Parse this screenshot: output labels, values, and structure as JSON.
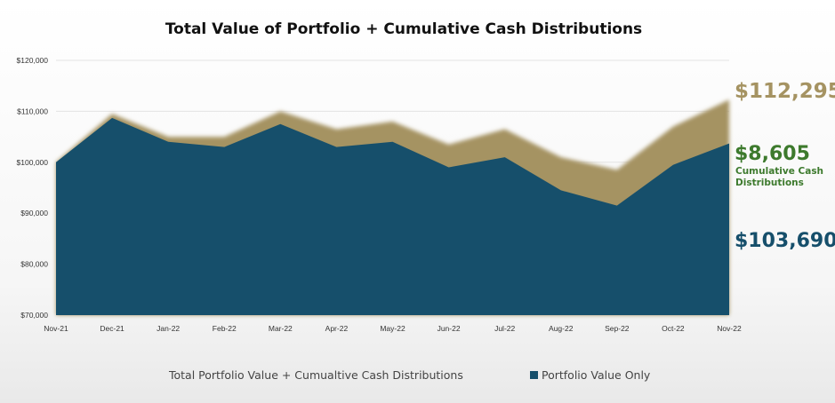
{
  "chart_data": {
    "type": "area",
    "title": "Total Value of Portfolio + Cumulative Cash Distributions",
    "categories": [
      "Nov-21",
      "Dec-21",
      "Jan-22",
      "Feb-22",
      "Mar-22",
      "Apr-22",
      "May-22",
      "Jun-22",
      "Jul-22",
      "Aug-22",
      "Sep-22",
      "Oct-22",
      "Nov-22"
    ],
    "series": [
      {
        "name": "Total Portfolio Value + Cumualtive Cash Distributions",
        "color": "#a59362",
        "values": [
          100000,
          109500,
          105000,
          105000,
          110000,
          106500,
          108000,
          103500,
          106500,
          101000,
          98500,
          107000,
          112295
        ]
      },
      {
        "name": "Portfolio Value Only",
        "color": "#164f6b",
        "values": [
          100000,
          108700,
          104000,
          103000,
          107500,
          103000,
          104000,
          99000,
          101000,
          94500,
          91500,
          99500,
          103690
        ]
      }
    ],
    "y_ticks": [
      "$120,000",
      "$110,000",
      "$100,000",
      "$90,000",
      "$80,000",
      "$70,000"
    ],
    "ylim": [
      70000,
      120000
    ],
    "grid": true,
    "legend_position": "bottom",
    "annotations": {
      "total_value": "$112,295",
      "distributions_value": "$8,605",
      "distributions_label_line1": "Cumulative Cash",
      "distributions_label_line2": "Distributions",
      "portfolio_value": "$103,690"
    },
    "annotation_colors": {
      "total": "#a59362",
      "distributions": "#3d7a2d",
      "portfolio": "#164f6b"
    }
  }
}
